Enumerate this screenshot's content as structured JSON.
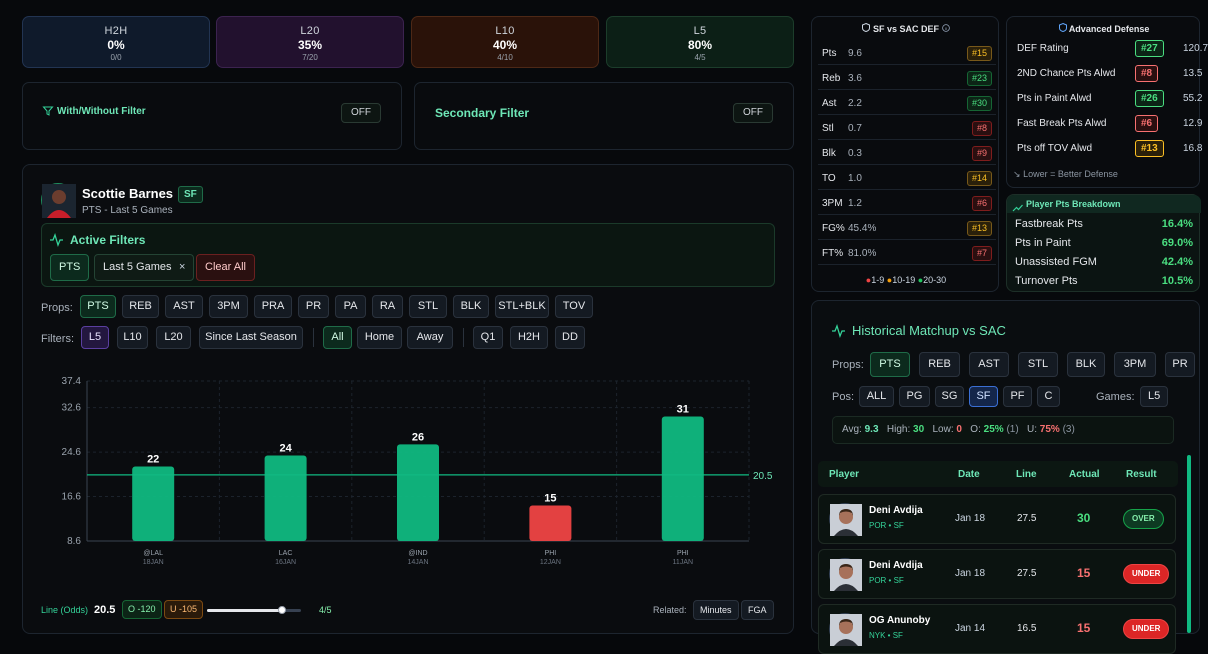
{
  "stats": [
    {
      "label": "H2H",
      "pct": "0%",
      "frac": "0/0",
      "bg": "#0f1a2b",
      "border": "#223452"
    },
    {
      "label": "L20",
      "pct": "35%",
      "frac": "7/20",
      "bg": "#22112e",
      "border": "#3c2350"
    },
    {
      "label": "L10",
      "pct": "40%",
      "frac": "4/10",
      "bg": "#2a1209",
      "border": "#4d2816"
    },
    {
      "label": "L5",
      "pct": "80%",
      "frac": "4/5",
      "bg": "#0c1f16",
      "border": "#1c3d2b"
    }
  ],
  "filters": {
    "with_without": "With/Without Filter",
    "with_without_state": "OFF",
    "secondary": "Secondary Filter",
    "secondary_state": "OFF"
  },
  "player": {
    "name": "Scottie Barnes",
    "pos": "SF",
    "subtitle": "PTS - Last 5 Games"
  },
  "active_filters": {
    "title": "Active Filters",
    "chips": [
      "PTS",
      "Last 5 Games"
    ],
    "remove": "×",
    "clear": "Clear All"
  },
  "props": {
    "label": "Props:",
    "items": [
      "PTS",
      "REB",
      "AST",
      "3PM",
      "PRA",
      "PR",
      "PA",
      "RA",
      "STL",
      "BLK",
      "STL+BLK",
      "TOV"
    ]
  },
  "filter_row": {
    "label": "Filters:",
    "ranges": [
      "L5",
      "L10",
      "L20",
      "Since Last Season"
    ],
    "venue": [
      "All",
      "Home",
      "Away"
    ],
    "extra": [
      "Q1",
      "H2H",
      "DD"
    ]
  },
  "chart_data": {
    "type": "bar",
    "categories": [
      "@LAL",
      "LAC",
      "@IND",
      "PHI",
      "PHI"
    ],
    "dates": [
      "18JAN",
      "16JAN",
      "14JAN",
      "12JAN",
      "11JAN"
    ],
    "values": [
      22,
      24,
      26,
      15,
      31
    ],
    "line": 20.5,
    "line_label": "20.5",
    "yticks": [
      "37.4",
      "32.6",
      "24.6",
      "16.6",
      "8.6"
    ],
    "ylim": [
      8.6,
      37.4
    ],
    "colors": {
      "over": "#10b981",
      "under": "#ef4444"
    }
  },
  "bottom": {
    "line_label": "Line (Odds)",
    "line_value": "20.5",
    "over": "O -120",
    "under": "U -105",
    "hit": "4/5",
    "related_label": "Related:",
    "related": [
      "Minutes",
      "FGA"
    ],
    "slider_fraction": 0.8
  },
  "def": {
    "title": "SF vs SAC DEF",
    "info_icon": "info-icon",
    "rows": [
      {
        "n": "Pts",
        "v": "9.6",
        "r": "#15",
        "c": "yel"
      },
      {
        "n": "Reb",
        "v": "3.6",
        "r": "#23",
        "c": "grn"
      },
      {
        "n": "Ast",
        "v": "2.2",
        "r": "#30",
        "c": "grn"
      },
      {
        "n": "Stl",
        "v": "0.7",
        "r": "#8",
        "c": "red"
      },
      {
        "n": "Blk",
        "v": "0.3",
        "r": "#9",
        "c": "red"
      },
      {
        "n": "TO",
        "v": "1.0",
        "r": "#14",
        "c": "yel"
      },
      {
        "n": "3PM",
        "v": "1.2",
        "r": "#6",
        "c": "red"
      },
      {
        "n": "FG%",
        "v": "45.4%",
        "r": "#13",
        "c": "yel"
      },
      {
        "n": "FT%",
        "v": "81.0%",
        "r": "#7",
        "c": "red"
      }
    ],
    "legend": [
      "1-9",
      "10-19",
      "20-30"
    ]
  },
  "adv": {
    "title": "Advanced Defense",
    "rows": [
      {
        "n": "DEF Rating",
        "r": "#27",
        "c": "grn",
        "v": "120.7"
      },
      {
        "n": "2ND Chance Pts Alwd",
        "r": "#8",
        "c": "red",
        "v": "13.5"
      },
      {
        "n": "Pts in Paint Alwd",
        "r": "#26",
        "c": "grn",
        "v": "55.2"
      },
      {
        "n": "Fast Break Pts Alwd",
        "r": "#6",
        "c": "red",
        "v": "12.9"
      },
      {
        "n": "Pts off TOV Alwd",
        "r": "#13",
        "c": "yel",
        "v": "16.8"
      }
    ],
    "note": "Lower = Better Defense"
  },
  "breakdown": {
    "title": "Player Pts Breakdown",
    "rows": [
      {
        "n": "Fastbreak Pts",
        "p": "16.4%"
      },
      {
        "n": "Pts in Paint",
        "p": "69.0%"
      },
      {
        "n": "Unassisted FGM",
        "p": "42.4%"
      },
      {
        "n": "Turnover Pts",
        "p": "10.5%"
      }
    ]
  },
  "hist": {
    "title": "Historical Matchup vs SAC",
    "props_label": "Props:",
    "props": [
      "PTS",
      "REB",
      "AST",
      "STL",
      "BLK",
      "3PM",
      "PR"
    ],
    "pos_label": "Pos:",
    "pos": [
      "ALL",
      "PG",
      "SG",
      "SF",
      "PF",
      "C"
    ],
    "games_label": "Games:",
    "games": "L5",
    "summary": {
      "avg_l": "Avg:",
      "avg": "9.3",
      "high_l": "High:",
      "high": "30",
      "low_l": "Low:",
      "low": "0",
      "o_l": "O:",
      "o": "25%",
      "o_n": "(1)",
      "u_l": "U:",
      "u": "75%",
      "u_n": "(3)"
    },
    "headers": [
      "Player",
      "Date",
      "Line",
      "Actual",
      "Result"
    ],
    "rows": [
      {
        "name": "Deni Avdija",
        "team": "POR • SF",
        "date": "Jan 18",
        "line": "27.5",
        "actual": "30",
        "result": "OVER"
      },
      {
        "name": "Deni Avdija",
        "team": "POR • SF",
        "date": "Jan 18",
        "line": "27.5",
        "actual": "15",
        "result": "UNDER"
      },
      {
        "name": "OG Anunoby",
        "team": "NYK • SF",
        "date": "Jan 14",
        "line": "16.5",
        "actual": "15",
        "result": "UNDER"
      }
    ]
  }
}
